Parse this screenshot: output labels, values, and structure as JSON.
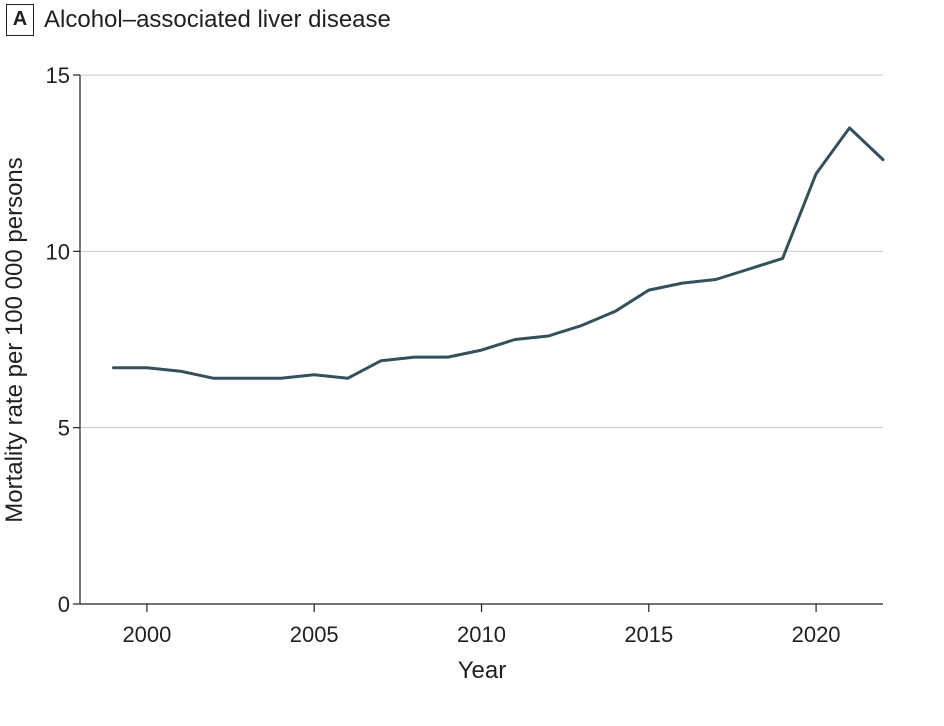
{
  "panel_label": "A",
  "chart_data": {
    "type": "line",
    "title": "Alcohol–associated liver disease",
    "xlabel": "Year",
    "ylabel": "Mortality rate per 100 000 persons",
    "xlim": [
      1998,
      2022
    ],
    "ylim": [
      0,
      15
    ],
    "xticks": [
      2000,
      2005,
      2010,
      2015,
      2020
    ],
    "yticks": [
      0,
      5,
      10,
      15
    ],
    "grid": "horizontal",
    "line_color": "#34505b",
    "x": [
      1999,
      2000,
      2001,
      2002,
      2003,
      2004,
      2005,
      2006,
      2007,
      2008,
      2009,
      2010,
      2011,
      2012,
      2013,
      2014,
      2015,
      2016,
      2017,
      2018,
      2019,
      2020,
      2021,
      2022
    ],
    "values": [
      6.7,
      6.7,
      6.6,
      6.4,
      6.4,
      6.4,
      6.5,
      6.4,
      6.9,
      7.0,
      7.0,
      7.2,
      7.5,
      7.6,
      7.9,
      8.3,
      8.9,
      9.1,
      9.2,
      9.5,
      9.8,
      12.2,
      13.5,
      12.6
    ]
  }
}
